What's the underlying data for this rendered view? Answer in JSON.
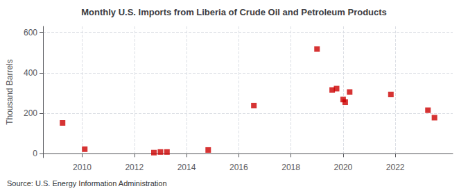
{
  "chart_data": {
    "type": "scatter",
    "title": "Monthly U.S. Imports from Liberia of Crude Oil and Petroleum Products",
    "ylabel": "Thousand Barrels",
    "annotations": [
      "Source: U.S. Energy Information Administration"
    ],
    "x": [
      2009.25,
      2010.1,
      2012.75,
      2013.0,
      2013.25,
      2014.83,
      2016.58,
      2019.0,
      2019.58,
      2019.75,
      2020.0,
      2020.08,
      2020.25,
      2021.83,
      2023.25,
      2023.5
    ],
    "values": [
      152,
      22,
      5,
      8,
      8,
      18,
      238,
      518,
      315,
      322,
      268,
      255,
      305,
      293,
      215,
      178
    ],
    "color": "#cc0000",
    "marker": "square",
    "xlim": [
      2008.5,
      2024.2
    ],
    "xticks": [
      2010,
      2012,
      2014,
      2016,
      2018,
      2020,
      2022
    ],
    "ylim": [
      -20,
      630
    ],
    "yticks": [
      0,
      200,
      400,
      600
    ],
    "grid": true
  }
}
